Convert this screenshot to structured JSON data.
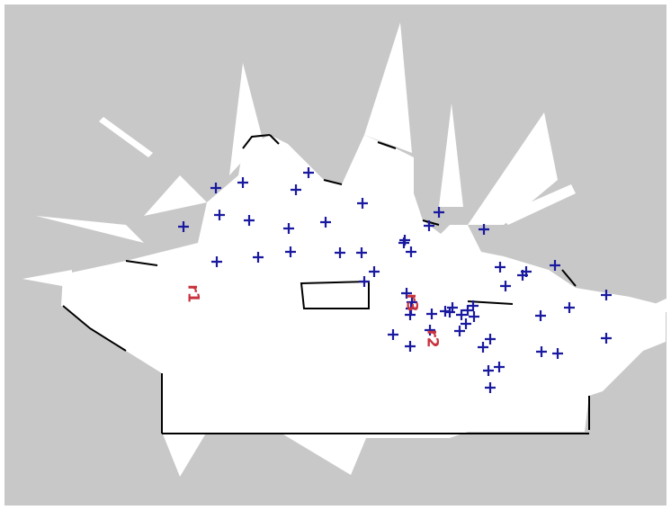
{
  "map": {
    "type": "occupancy-grid",
    "colors": {
      "unknown": "#c8c8c8",
      "free": "#ffffff",
      "obstacle": "#000000",
      "marker": "#1a1aa0",
      "robot_label": "#c8323c"
    },
    "marker_symbol": "plus",
    "marker_count": 65
  },
  "robots": [
    {
      "id": "r1",
      "label": "r1"
    },
    {
      "id": "r2",
      "label": "r2"
    },
    {
      "id": "r3",
      "label": "r3"
    }
  ]
}
